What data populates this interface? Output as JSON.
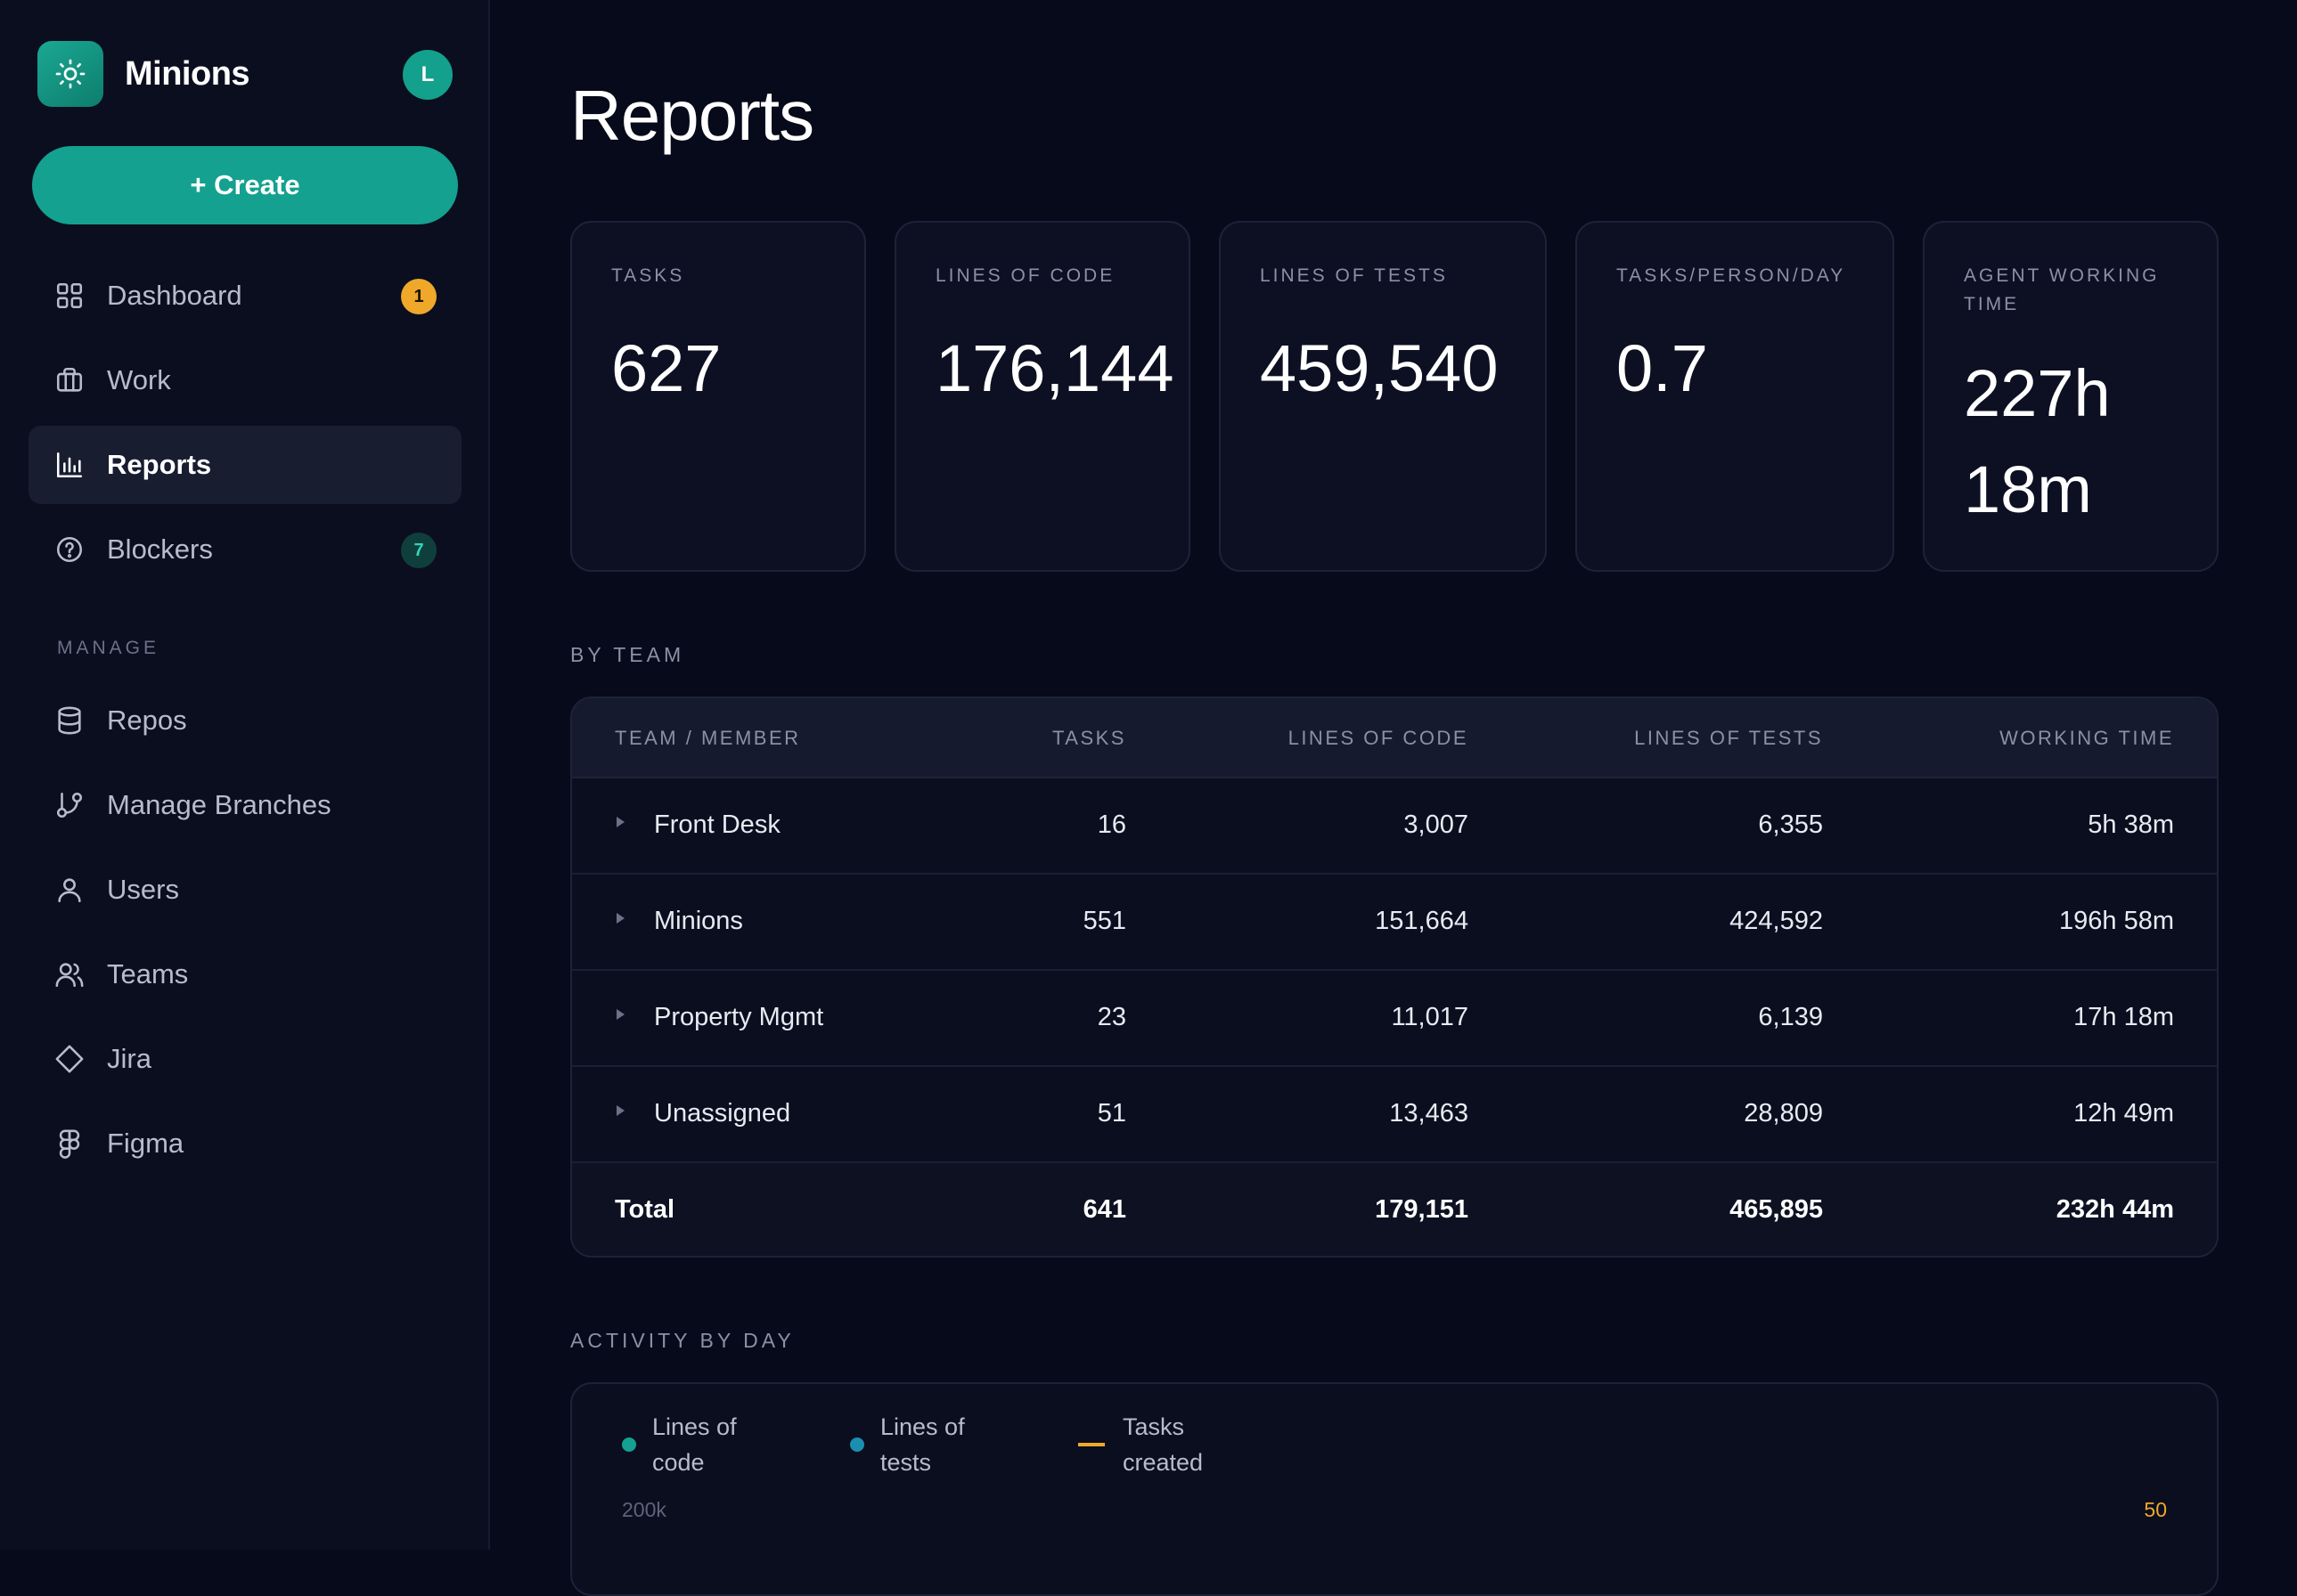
{
  "app": {
    "name": "Minions",
    "avatar_initial": "L",
    "logo_icon": "sun-icon"
  },
  "create_label": "+ Create",
  "nav": [
    {
      "label": "Dashboard",
      "icon": "grid-icon",
      "badge": "1",
      "badge_color": "#f0a82a"
    },
    {
      "label": "Work",
      "icon": "briefcase-icon"
    },
    {
      "label": "Reports",
      "icon": "bar-chart-icon",
      "active": true
    },
    {
      "label": "Blockers",
      "icon": "help-circle-icon",
      "badge": "7",
      "badge_color": "#34d3bd"
    }
  ],
  "manage_label": "MANAGE",
  "manage_nav": [
    {
      "label": "Repos",
      "icon": "database-icon"
    },
    {
      "label": "Manage Branches",
      "icon": "git-branch-icon"
    },
    {
      "label": "Users",
      "icon": "user-icon"
    },
    {
      "label": "Teams",
      "icon": "users-icon"
    },
    {
      "label": "Jira",
      "icon": "diamond-icon"
    },
    {
      "label": "Figma",
      "icon": "figma-icon"
    }
  ],
  "page_title": "Reports",
  "stats": [
    {
      "label": "TASKS",
      "value": "627"
    },
    {
      "label": "LINES OF CODE",
      "value": "176,144"
    },
    {
      "label": "LINES OF TESTS",
      "value": "459,540"
    },
    {
      "label": "TASKS/PERSON/DAY",
      "value": "0.7"
    },
    {
      "label": "AGENT WORKING TIME",
      "value": "227h 18m"
    }
  ],
  "by_team": {
    "heading": "BY TEAM",
    "columns": [
      "TEAM / MEMBER",
      "TASKS",
      "LINES OF CODE",
      "LINES OF TESTS",
      "WORKING TIME"
    ],
    "rows": [
      {
        "team": "Front Desk",
        "tasks": "16",
        "loc": "3,007",
        "lot": "6,355",
        "time": "5h 38m"
      },
      {
        "team": "Minions",
        "tasks": "551",
        "loc": "151,664",
        "lot": "424,592",
        "time": "196h 58m"
      },
      {
        "team": "Property Mgmt",
        "tasks": "23",
        "loc": "11,017",
        "lot": "6,139",
        "time": "17h 18m"
      },
      {
        "team": "Unassigned",
        "tasks": "51",
        "loc": "13,463",
        "lot": "28,809",
        "time": "12h 49m"
      }
    ],
    "total": {
      "label": "Total",
      "tasks": "641",
      "loc": "179,151",
      "lot": "465,895",
      "time": "232h 44m"
    }
  },
  "activity": {
    "heading": "ACTIVITY BY DAY",
    "legend": [
      {
        "label_line1": "Lines of",
        "label_line2": "code",
        "color": "#14a190",
        "marker": "dot"
      },
      {
        "label_line1": "Lines of",
        "label_line2": "tests",
        "color": "#1b8fb0",
        "marker": "dot"
      },
      {
        "label_line1": "Tasks",
        "label_line2": "created",
        "color": "#f0a82a",
        "marker": "line"
      }
    ],
    "left_axis_top": "200k",
    "right_axis_top": "50"
  }
}
